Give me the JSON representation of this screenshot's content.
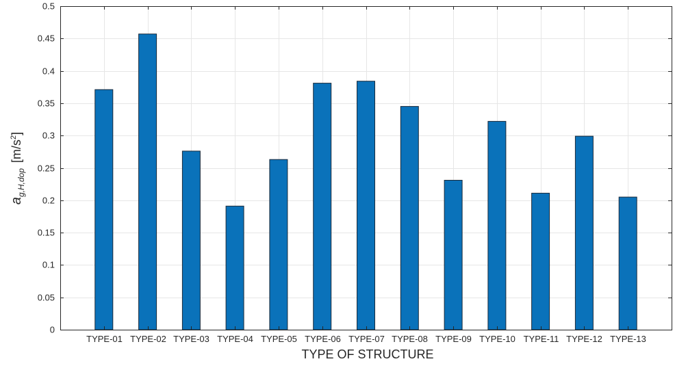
{
  "chart_data": {
    "type": "bar",
    "categories": [
      "TYPE-01",
      "TYPE-02",
      "TYPE-03",
      "TYPE-04",
      "TYPE-05",
      "TYPE-06",
      "TYPE-07",
      "TYPE-08",
      "TYPE-09",
      "TYPE-10",
      "TYPE-11",
      "TYPE-12",
      "TYPE-13"
    ],
    "values": [
      0.371,
      0.457,
      0.276,
      0.191,
      0.263,
      0.381,
      0.384,
      0.345,
      0.231,
      0.322,
      0.211,
      0.299,
      0.205
    ],
    "title": "",
    "xlabel": "TYPE OF STRUCTURE",
    "ylabel": {
      "main": "a",
      "subscript": "g,H,dop",
      "unit_open": "[m/s",
      "unit_superscript": "2",
      "unit_close": "]"
    },
    "ylim": [
      0,
      0.5
    ],
    "yticks": [
      0,
      0.05,
      0.1,
      0.15,
      0.2,
      0.25,
      0.3,
      0.35,
      0.4,
      0.45,
      0.5
    ],
    "ytick_labels": [
      "0",
      "0.05",
      "0.1",
      "0.15",
      "0.2",
      "0.25",
      "0.3",
      "0.35",
      "0.4",
      "0.45",
      "0.5"
    ],
    "grid": true,
    "bar_color": "#0a72ba",
    "bar_edge_color": "#1b2a3a",
    "grid_color": "#e6e6e6",
    "axis_color": "#262626"
  }
}
